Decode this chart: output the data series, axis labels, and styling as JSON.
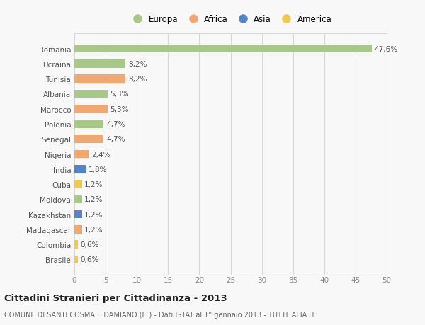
{
  "countries": [
    "Romania",
    "Ucraina",
    "Tunisia",
    "Albania",
    "Marocco",
    "Polonia",
    "Senegal",
    "Nigeria",
    "India",
    "Cuba",
    "Moldova",
    "Kazakhstan",
    "Madagascar",
    "Colombia",
    "Brasile"
  ],
  "values": [
    47.6,
    8.2,
    8.2,
    5.3,
    5.3,
    4.7,
    4.7,
    2.4,
    1.8,
    1.2,
    1.2,
    1.2,
    1.2,
    0.6,
    0.6
  ],
  "labels": [
    "47,6%",
    "8,2%",
    "8,2%",
    "5,3%",
    "5,3%",
    "4,7%",
    "4,7%",
    "2,4%",
    "1,8%",
    "1,2%",
    "1,2%",
    "1,2%",
    "1,2%",
    "0,6%",
    "0,6%"
  ],
  "continents": [
    "Europa",
    "Europa",
    "Africa",
    "Europa",
    "Africa",
    "Europa",
    "Africa",
    "Africa",
    "Asia",
    "America",
    "Europa",
    "Asia",
    "Africa",
    "America",
    "America"
  ],
  "continent_colors": {
    "Europa": "#a8c888",
    "Africa": "#f0a870",
    "Asia": "#5585c5",
    "America": "#f0c850"
  },
  "legend_labels": [
    "Europa",
    "Africa",
    "Asia",
    "America"
  ],
  "legend_colors": [
    "#a8c888",
    "#f0a870",
    "#5585c5",
    "#f0c850"
  ],
  "xlim": [
    0,
    50
  ],
  "xticks": [
    0,
    5,
    10,
    15,
    20,
    25,
    30,
    35,
    40,
    45,
    50
  ],
  "title": "Cittadini Stranieri per Cittadinanza - 2013",
  "subtitle": "COMUNE DI SANTI COSMA E DAMIANO (LT) - Dati ISTAT al 1° gennaio 2013 - TUTTITALIA.IT",
  "bg_color": "#f8f8f8",
  "grid_color": "#d8d8d8",
  "bar_height": 0.55,
  "label_fontsize": 7.5,
  "ytick_fontsize": 7.5,
  "xtick_fontsize": 7.5,
  "title_fontsize": 9.5,
  "subtitle_fontsize": 7.0,
  "legend_fontsize": 8.5
}
